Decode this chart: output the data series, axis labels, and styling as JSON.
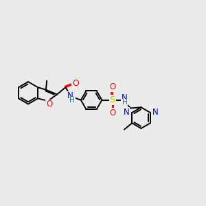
{
  "background_color": "#ebebeb",
  "line_color": "#000000",
  "bond_width": 1.4,
  "figsize": [
    3.0,
    3.0
  ],
  "dpi": 100,
  "font_size": 8.5,
  "atom_colors": {
    "O": "#ff0000",
    "N": "#0000cc",
    "S": "#cccc00",
    "H": "#008080",
    "C": "#000000"
  },
  "xlim": [
    0,
    10
  ],
  "ylim": [
    0,
    10
  ]
}
